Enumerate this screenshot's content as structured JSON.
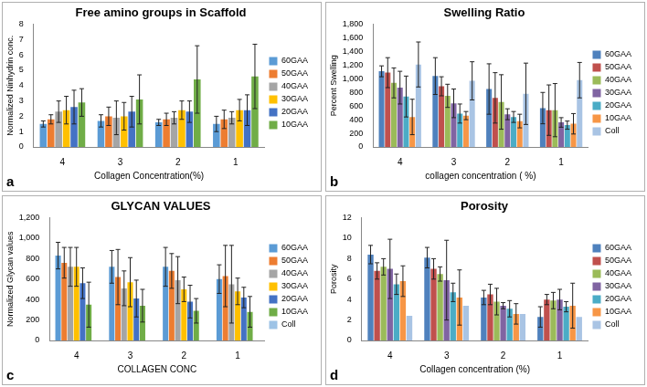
{
  "chart_data": [
    {
      "type": "bar",
      "panel_label": "a",
      "title": "Free amino groups in Scaffold",
      "x_label": "Collagen Concentration(%)",
      "y_label": "Normalized Ninhydrin conc.",
      "categories": [
        "4",
        "3",
        "2",
        "1"
      ],
      "series": [
        {
          "name": "60GAA",
          "color": "#5b9bd5",
          "values": [
            1.5,
            1.7,
            1.6,
            1.5
          ],
          "errors": [
            0.2,
            0.4,
            0.2,
            0.5
          ]
        },
        {
          "name": "50GAA",
          "color": "#ed7d31",
          "values": [
            1.8,
            2.0,
            1.8,
            1.8
          ],
          "errors": [
            0.3,
            0.6,
            0.4,
            0.6
          ]
        },
        {
          "name": "40GAA",
          "color": "#a5a5a5",
          "values": [
            2.3,
            1.9,
            1.9,
            1.9
          ],
          "errors": [
            0.7,
            1.1,
            0.4,
            0.4
          ]
        },
        {
          "name": "30GAA",
          "color": "#ffc000",
          "values": [
            2.4,
            2.0,
            2.4,
            2.4
          ],
          "errors": [
            0.9,
            0.9,
            0.6,
            0.7
          ]
        },
        {
          "name": "20GAA",
          "color": "#4472c4",
          "values": [
            2.6,
            2.3,
            2.3,
            2.4
          ],
          "errors": [
            1.1,
            1.0,
            0.7,
            1.0
          ]
        },
        {
          "name": "10GAA",
          "color": "#70ad47",
          "values": [
            2.9,
            3.1,
            4.4,
            4.6
          ],
          "errors": [
            0.9,
            1.6,
            2.2,
            2.1
          ]
        }
      ],
      "ylim": [
        0,
        8
      ],
      "yticks": [
        0,
        1,
        2,
        3,
        4,
        5,
        6,
        7,
        8
      ],
      "grid": false,
      "legend": "right"
    },
    {
      "type": "bar",
      "panel_label": "b",
      "title": "Swelling Ratio",
      "x_label": "collagen concentration ( %)",
      "y_label": "Percent Swelling",
      "categories": [
        "4",
        "3",
        "2",
        "1"
      ],
      "series": [
        {
          "name": "60GAA",
          "color": "#4f81bd",
          "values": [
            1110,
            1040,
            850,
            570
          ],
          "errors": [
            80,
            270,
            370,
            230
          ]
        },
        {
          "name": "50GAA",
          "color": "#c0504d",
          "values": [
            1090,
            890,
            720,
            540
          ],
          "errors": [
            220,
            140,
            370,
            370
          ]
        },
        {
          "name": "40GAA",
          "color": "#9bbb59",
          "values": [
            940,
            750,
            660,
            540
          ],
          "errors": [
            220,
            170,
            400,
            390
          ]
        },
        {
          "name": "30GAA",
          "color": "#8064a2",
          "values": [
            870,
            640,
            480,
            360
          ],
          "errors": [
            240,
            210,
            80,
            70
          ]
        },
        {
          "name": "20GAA",
          "color": "#4bacc6",
          "values": [
            740,
            490,
            440,
            320
          ],
          "errors": [
            300,
            140,
            80,
            60
          ]
        },
        {
          "name": "10GAA",
          "color": "#f79646",
          "values": [
            440,
            460,
            380,
            340
          ],
          "errors": [
            260,
            60,
            100,
            150
          ]
        },
        {
          "name": "Coll",
          "color": "#a9c4e4",
          "values": [
            1210,
            970,
            780,
            980
          ],
          "errors": [
            330,
            280,
            450,
            260
          ]
        }
      ],
      "ylim": [
        0,
        1800
      ],
      "yticks": [
        0,
        200,
        400,
        600,
        800,
        1000,
        1200,
        1400,
        1600,
        1800
      ],
      "grid": false,
      "legend": "right"
    },
    {
      "type": "bar",
      "panel_label": "c",
      "title": "GLYCAN VALUES",
      "x_label": "COLLAGEN CONC",
      "y_label": "Normalized Glycan values",
      "categories": [
        "4",
        "3",
        "2",
        "1"
      ],
      "series": [
        {
          "name": "60GAA",
          "color": "#5b9bd5",
          "values": [
            830,
            720,
            720,
            600
          ],
          "errors": [
            130,
            160,
            190,
            140
          ]
        },
        {
          "name": "50GAA",
          "color": "#ed7d31",
          "values": [
            760,
            620,
            680,
            630
          ],
          "errors": [
            150,
            270,
            170,
            300
          ]
        },
        {
          "name": "40GAA",
          "color": "#a5a5a5",
          "values": [
            720,
            510,
            590,
            550
          ],
          "errors": [
            190,
            170,
            230,
            380
          ]
        },
        {
          "name": "30GAA",
          "color": "#ffc000",
          "values": [
            720,
            570,
            500,
            480
          ],
          "errors": [
            190,
            240,
            120,
            130
          ]
        },
        {
          "name": "20GAA",
          "color": "#4472c4",
          "values": [
            560,
            410,
            380,
            420
          ],
          "errors": [
            150,
            180,
            160,
            100
          ]
        },
        {
          "name": "10GAA",
          "color": "#70ad47",
          "values": [
            350,
            340,
            290,
            280
          ],
          "errors": [
            220,
            160,
            120,
            150
          ]
        },
        {
          "name": "Coll",
          "color": "#9dc3e6",
          "values": [
            null,
            null,
            null,
            null
          ],
          "errors": [
            null,
            null,
            null,
            null
          ]
        }
      ],
      "ylim": [
        0,
        1200
      ],
      "yticks": [
        0,
        200,
        400,
        600,
        800,
        1000,
        1200
      ],
      "grid": false,
      "legend": "right"
    },
    {
      "type": "bar",
      "panel_label": "d",
      "title": "Porosity",
      "x_label": "Collagen concentration (%)",
      "y_label": "Porosity",
      "categories": [
        "4",
        "3",
        "2",
        "1"
      ],
      "series": [
        {
          "name": "60GAA",
          "color": "#4f81bd",
          "values": [
            8.4,
            8.1,
            4.2,
            2.3
          ],
          "errors": [
            0.9,
            1.0,
            0.7,
            1.0
          ]
        },
        {
          "name": "50GAA",
          "color": "#c0504d",
          "values": [
            6.8,
            7.0,
            4.5,
            4.0
          ],
          "errors": [
            0.8,
            1.0,
            1.0,
            0.5
          ]
        },
        {
          "name": "40GAA",
          "color": "#9bbb59",
          "values": [
            7.2,
            6.5,
            3.8,
            3.9
          ],
          "errors": [
            0.8,
            0.7,
            1.3,
            0.8
          ]
        },
        {
          "name": "30GAA",
          "color": "#8064a2",
          "values": [
            7.0,
            5.9,
            3.4,
            4.0
          ],
          "errors": [
            2.9,
            3.9,
            0.3,
            1.0
          ]
        },
        {
          "name": "20GAA",
          "color": "#4bacc6",
          "values": [
            5.5,
            4.7,
            3.1,
            3.3
          ],
          "errors": [
            1.0,
            0.9,
            0.8,
            0.5
          ]
        },
        {
          "name": "10GAA",
          "color": "#f79646",
          "values": [
            5.8,
            4.2,
            2.6,
            3.4
          ],
          "errors": [
            1.5,
            2.7,
            1.0,
            2.2
          ]
        },
        {
          "name": "Coll",
          "color": "#a9c4e4",
          "values": [
            2.4,
            3.4,
            2.6,
            2.3
          ],
          "errors": [
            null,
            null,
            null,
            null
          ]
        }
      ],
      "ylim": [
        0,
        12
      ],
      "yticks": [
        0,
        2,
        4,
        6,
        8,
        10,
        12
      ],
      "grid": false,
      "legend": "right"
    }
  ]
}
